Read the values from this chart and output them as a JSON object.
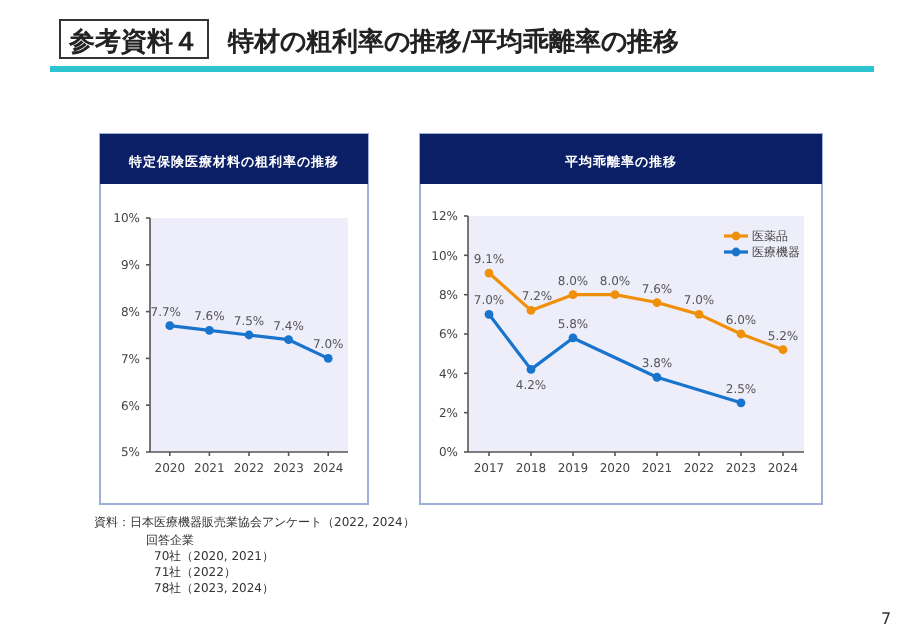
{
  "chart_data": [
    {
      "type": "line",
      "title": "特定保険医療材料の粗利率の推移",
      "annotations": [
        "参考資料４",
        "特材の粗利率の推移/平均乖離率の推移",
        "資料：日本医療機器販売業協会アンケート（2022, 2024）",
        "回答企業",
        "70社（2020, 2021）",
        "71社（2022）",
        "78社（2023, 2024）",
        "7"
      ],
      "categories": [
        "2020",
        "2021",
        "2022",
        "2023",
        "2024"
      ],
      "series": [
        {
          "color": "#1874cd",
          "values": [
            7.7,
            7.6,
            7.5,
            7.4,
            7.0
          ],
          "value_labels": [
            "7.7%",
            "7.6%",
            "7.5%",
            "7.4%",
            "7.0%"
          ]
        }
      ],
      "ylim": [
        5,
        10
      ],
      "yticks": [
        {
          "value": 5,
          "label": "5%"
        },
        {
          "value": 6,
          "label": "6%"
        },
        {
          "value": 7,
          "label": "7%"
        },
        {
          "value": 8,
          "label": "8%"
        },
        {
          "value": 9,
          "label": "9%"
        },
        {
          "value": 10,
          "label": "10%"
        }
      ],
      "grid": false,
      "legend": false,
      "marker": "circle",
      "line_style": "solid"
    },
    {
      "type": "line",
      "title": "平均乖離率の推移",
      "xlim": [
        2016.5,
        2024.5
      ],
      "xticks": [
        2017,
        2018,
        2019,
        2020,
        2021,
        2022,
        2023,
        2024
      ],
      "series": [
        {
          "name": "医薬品",
          "color": "#f0900a",
          "x": [
            2017,
            2018,
            2019,
            2020,
            2021,
            2022,
            2023,
            2024
          ],
          "values": [
            9.1,
            7.2,
            8.0,
            8.0,
            7.6,
            7.0,
            6.0,
            5.2
          ],
          "value_labels": [
            "9.1%",
            "7.2%",
            "8.0%",
            "8.0%",
            "7.6%",
            "7.0%",
            "6.0%",
            "5.2%"
          ]
        },
        {
          "name": "医療機器",
          "color": "#1874cd",
          "x": [
            2017,
            2018,
            2019,
            2021,
            2023
          ],
          "values": [
            7.0,
            4.2,
            5.8,
            3.8,
            2.5
          ],
          "value_labels": [
            "7.0%",
            "4.2%",
            "5.8%",
            "3.8%",
            "2.5%"
          ]
        }
      ],
      "ylim": [
        0,
        12
      ],
      "yticks": [
        {
          "value": 0,
          "label": "0%"
        },
        {
          "value": 2,
          "label": "2%"
        },
        {
          "value": 4,
          "label": "4%"
        },
        {
          "value": 6,
          "label": "6%"
        },
        {
          "value": 8,
          "label": "8%"
        },
        {
          "value": 10,
          "label": "10%"
        },
        {
          "value": 12,
          "label": "12%"
        }
      ],
      "grid": false,
      "legend": "top right",
      "marker": "circle",
      "line_style": "solid"
    }
  ]
}
